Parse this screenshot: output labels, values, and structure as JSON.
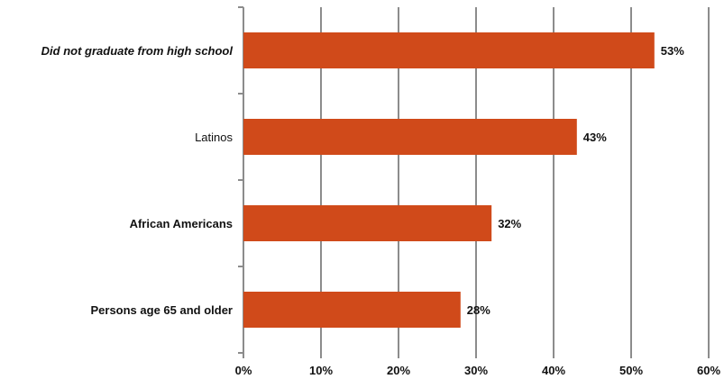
{
  "chart_data": {
    "type": "bar",
    "orientation": "horizontal",
    "categories": [
      "Did not graduate from high school",
      "Latinos",
      "African Americans",
      "Persons age 65 and older"
    ],
    "values": [
      53,
      43,
      32,
      28
    ],
    "value_labels": [
      "53%",
      "43%",
      "32%",
      "28%"
    ],
    "x_ticks": [
      "0%",
      "10%",
      "20%",
      "30%",
      "40%",
      "50%",
      "60%"
    ],
    "xlim": [
      0,
      60
    ],
    "grid": "vertical",
    "bar_color": "#d04a1a",
    "grid_color": "#8c8c8c",
    "category_styles": [
      "bold-italic",
      "normal",
      "bold",
      "bold"
    ]
  }
}
